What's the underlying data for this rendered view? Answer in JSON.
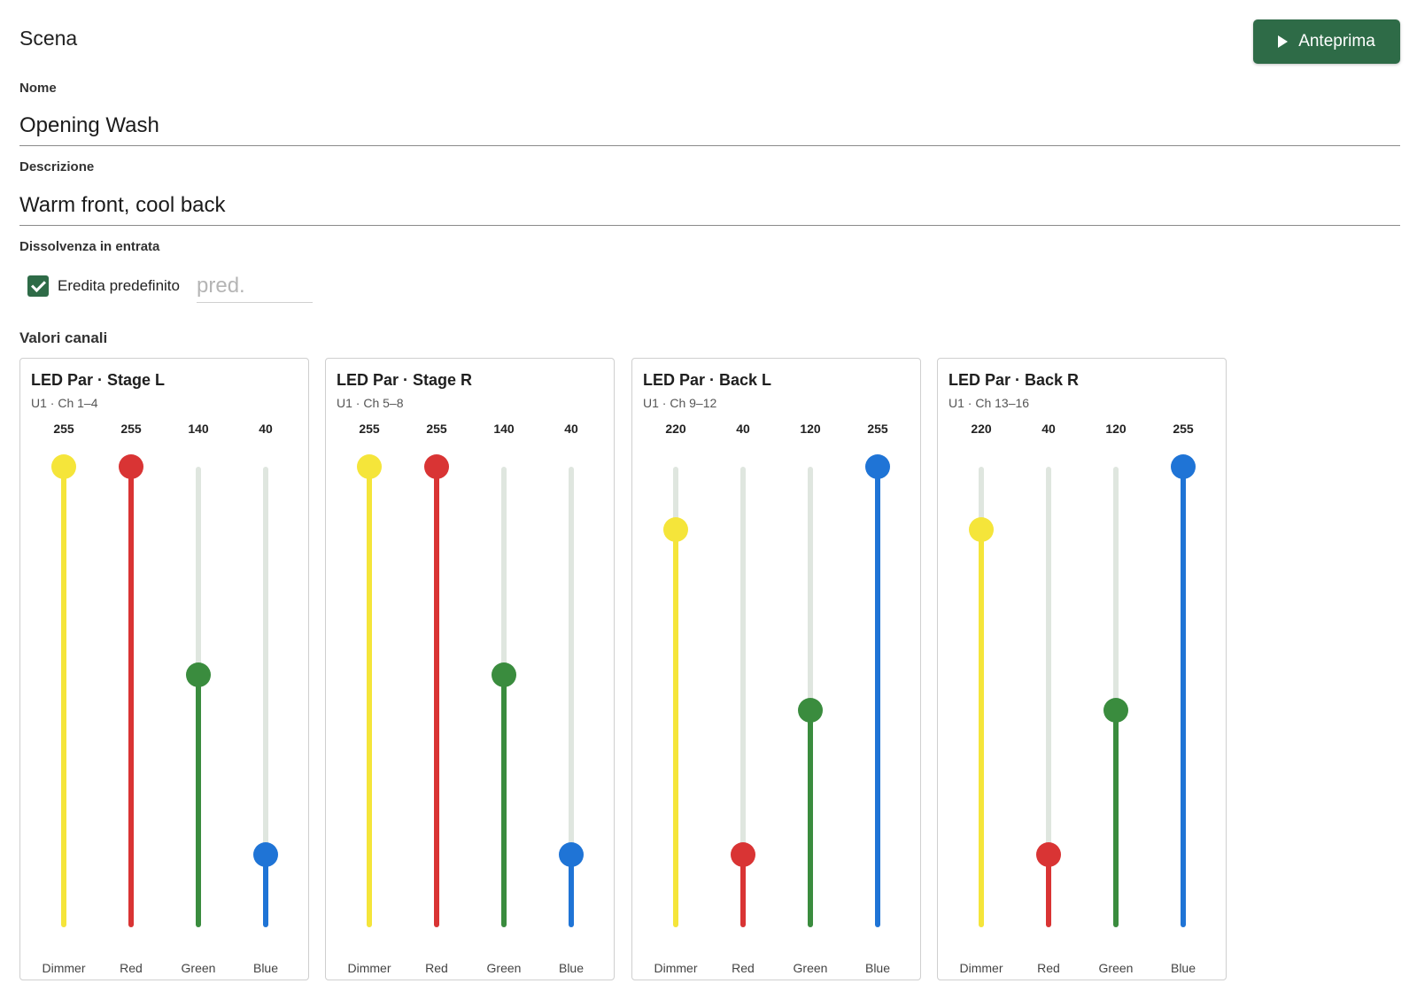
{
  "header": {
    "title": "Scena",
    "preview_label": "Anteprima"
  },
  "form": {
    "name_label": "Nome",
    "name_value": "Opening Wash",
    "description_label": "Descrizione",
    "description_value": "Warm front, cool back",
    "fade_label": "Dissolvenza in entrata",
    "inherit_label": "Eredita predefinito",
    "inherit_checked": true,
    "fade_placeholder": "pred."
  },
  "channels_label": "Valori canali",
  "colors": {
    "accent": "#2e6b47",
    "Dimmer": "#f5e53a",
    "Red": "#d93434",
    "Green": "#3a8c3e",
    "Blue": "#1f74d6",
    "track": "#dfe6df"
  },
  "fixtures": [
    {
      "name": "LED Par · Stage L",
      "address": "U1 · Ch 1–4",
      "channels": [
        {
          "name": "Dimmer",
          "value": 255
        },
        {
          "name": "Red",
          "value": 255
        },
        {
          "name": "Green",
          "value": 140
        },
        {
          "name": "Blue",
          "value": 40
        }
      ]
    },
    {
      "name": "LED Par · Stage R",
      "address": "U1 · Ch 5–8",
      "channels": [
        {
          "name": "Dimmer",
          "value": 255
        },
        {
          "name": "Red",
          "value": 255
        },
        {
          "name": "Green",
          "value": 140
        },
        {
          "name": "Blue",
          "value": 40
        }
      ]
    },
    {
      "name": "LED Par · Back L",
      "address": "U1 · Ch 9–12",
      "channels": [
        {
          "name": "Dimmer",
          "value": 220
        },
        {
          "name": "Red",
          "value": 40
        },
        {
          "name": "Green",
          "value": 120
        },
        {
          "name": "Blue",
          "value": 255
        }
      ]
    },
    {
      "name": "LED Par · Back R",
      "address": "U1 · Ch 13–16",
      "channels": [
        {
          "name": "Dimmer",
          "value": 220
        },
        {
          "name": "Red",
          "value": 40
        },
        {
          "name": "Green",
          "value": 120
        },
        {
          "name": "Blue",
          "value": 255
        }
      ]
    }
  ],
  "max_value": 255
}
